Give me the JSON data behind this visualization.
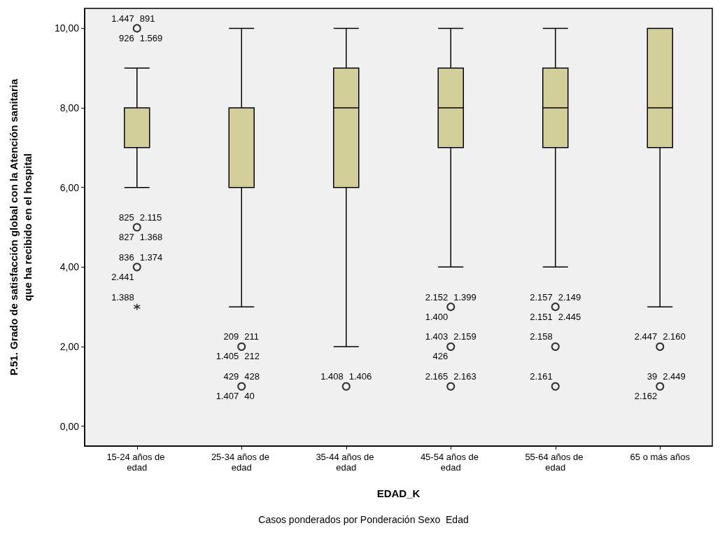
{
  "chart_data": {
    "type": "box",
    "xlabel": "EDAD_K",
    "ylabel": "P.51. Grado de satisfacción global con la Atención sanitaria que ha recibido en el hospital",
    "categories": [
      "15-24 años de edad",
      "25-34 años de edad",
      "35-44 años de edad",
      "45-54 años de edad",
      "55-64 años de edad",
      "65 o más años"
    ],
    "ylim": [
      -0.5,
      10.5
    ],
    "yticks": [
      {
        "value": 0,
        "label": "0,00"
      },
      {
        "value": 2,
        "label": "2,00"
      },
      {
        "value": 4,
        "label": "4,00"
      },
      {
        "value": 6,
        "label": "6,00"
      },
      {
        "value": 8,
        "label": "8,00"
      },
      {
        "value": 10,
        "label": "10,00"
      }
    ],
    "grid": false,
    "series": [
      {
        "color": "#d3cf9a",
        "boxes": [
          {
            "low": 6,
            "q1": 7,
            "median": 8,
            "q3": 8,
            "high": 9
          },
          {
            "low": 3,
            "q1": 6,
            "median": 8,
            "q3": 8,
            "high": 10
          },
          {
            "low": 2,
            "q1": 6,
            "median": 8,
            "q3": 9,
            "high": 10
          },
          {
            "low": 4,
            "q1": 7,
            "median": 8,
            "q3": 9,
            "high": 10
          },
          {
            "low": 4,
            "q1": 7,
            "median": 8,
            "q3": 9,
            "high": 10
          },
          {
            "low": 3,
            "q1": 7,
            "median": 8,
            "q3": 10,
            "high": 10
          }
        ]
      },
      {
        "type": "scatter",
        "marker": "circle",
        "color": "#000000",
        "x": [
          "15-24 años de edad",
          "15-24 años de edad",
          "15-24 años de edad",
          "25-34 años de edad",
          "25-34 años de edad",
          "35-44 años de edad",
          "45-54 años de edad",
          "45-54 años de edad",
          "45-54 años de edad",
          "55-64 años de edad",
          "55-64 años de edad",
          "55-64 años de edad",
          "65 o más años",
          "65 o más años"
        ],
        "values": [
          10,
          5,
          4,
          2,
          1,
          1,
          3,
          2,
          1,
          3,
          2,
          1,
          2,
          1
        ]
      },
      {
        "type": "scatter",
        "marker": "cross",
        "color": "#000000",
        "x": [
          "15-24 años de edad"
        ],
        "values": [
          3
        ]
      }
    ],
    "annotations": [
      {
        "text": "1.447",
        "x": "15-24 años de edad",
        "y": 10
      },
      {
        "text": "891",
        "x": "15-24 años de edad",
        "y": 10
      },
      {
        "text": "926",
        "x": "15-24 años de edad",
        "y": 10
      },
      {
        "text": "1.569",
        "x": "15-24 años de edad",
        "y": 10
      },
      {
        "text": "825",
        "x": "15-24 años de edad",
        "y": 5
      },
      {
        "text": "2.115",
        "x": "15-24 años de edad",
        "y": 5
      },
      {
        "text": "827",
        "x": "15-24 años de edad",
        "y": 5
      },
      {
        "text": "1.368",
        "x": "15-24 años de edad",
        "y": 5
      },
      {
        "text": "836",
        "x": "15-24 años de edad",
        "y": 4
      },
      {
        "text": "1.374",
        "x": "15-24 años de edad",
        "y": 4
      },
      {
        "text": "2.441",
        "x": "15-24 años de edad",
        "y": 4
      },
      {
        "text": "1.388",
        "x": "15-24 años de edad",
        "y": 3
      },
      {
        "text": "209",
        "x": "25-34 años de edad",
        "y": 2
      },
      {
        "text": "211",
        "x": "25-34 años de edad",
        "y": 2
      },
      {
        "text": "1.405",
        "x": "25-34 años de edad",
        "y": 2
      },
      {
        "text": "212",
        "x": "25-34 años de edad",
        "y": 2
      },
      {
        "text": "429",
        "x": "25-34 años de edad",
        "y": 1
      },
      {
        "text": "428",
        "x": "25-34 años de edad",
        "y": 1
      },
      {
        "text": "1.407",
        "x": "25-34 años de edad",
        "y": 1
      },
      {
        "text": "40",
        "x": "25-34 años de edad",
        "y": 1
      },
      {
        "text": "1.408",
        "x": "35-44 años de edad",
        "y": 1
      },
      {
        "text": "1.406",
        "x": "35-44 años de edad",
        "y": 1
      },
      {
        "text": "2.152",
        "x": "45-54 años de edad",
        "y": 3
      },
      {
        "text": "1.399",
        "x": "45-54 años de edad",
        "y": 3
      },
      {
        "text": "1.400",
        "x": "45-54 años de edad",
        "y": 3
      },
      {
        "text": "1.403",
        "x": "45-54 años de edad",
        "y": 2
      },
      {
        "text": "2.159",
        "x": "45-54 años de edad",
        "y": 2
      },
      {
        "text": "426",
        "x": "45-54 años de edad",
        "y": 2
      },
      {
        "text": "2.165",
        "x": "45-54 años de edad",
        "y": 1
      },
      {
        "text": "2.163",
        "x": "45-54 años de edad",
        "y": 1
      },
      {
        "text": "2.157",
        "x": "55-64 años de edad",
        "y": 3
      },
      {
        "text": "2.149",
        "x": "55-64 años de edad",
        "y": 3
      },
      {
        "text": "2.151",
        "x": "55-64 años de edad",
        "y": 3
      },
      {
        "text": "2.445",
        "x": "55-64 años de edad",
        "y": 3
      },
      {
        "text": "2.158",
        "x": "55-64 años de edad",
        "y": 2
      },
      {
        "text": "2.161",
        "x": "55-64 años de edad",
        "y": 1
      },
      {
        "text": "2.447",
        "x": "65 o más años",
        "y": 2
      },
      {
        "text": "2.160",
        "x": "65 o más años",
        "y": 2
      },
      {
        "text": "39",
        "x": "65 o más años",
        "y": 1
      },
      {
        "text": "2.449",
        "x": "65 o más años",
        "y": 1
      },
      {
        "text": "2.162",
        "x": "65 o más años",
        "y": 1
      },
      "Casos ponderados por Ponderación Sexo  Edad"
    ]
  }
}
